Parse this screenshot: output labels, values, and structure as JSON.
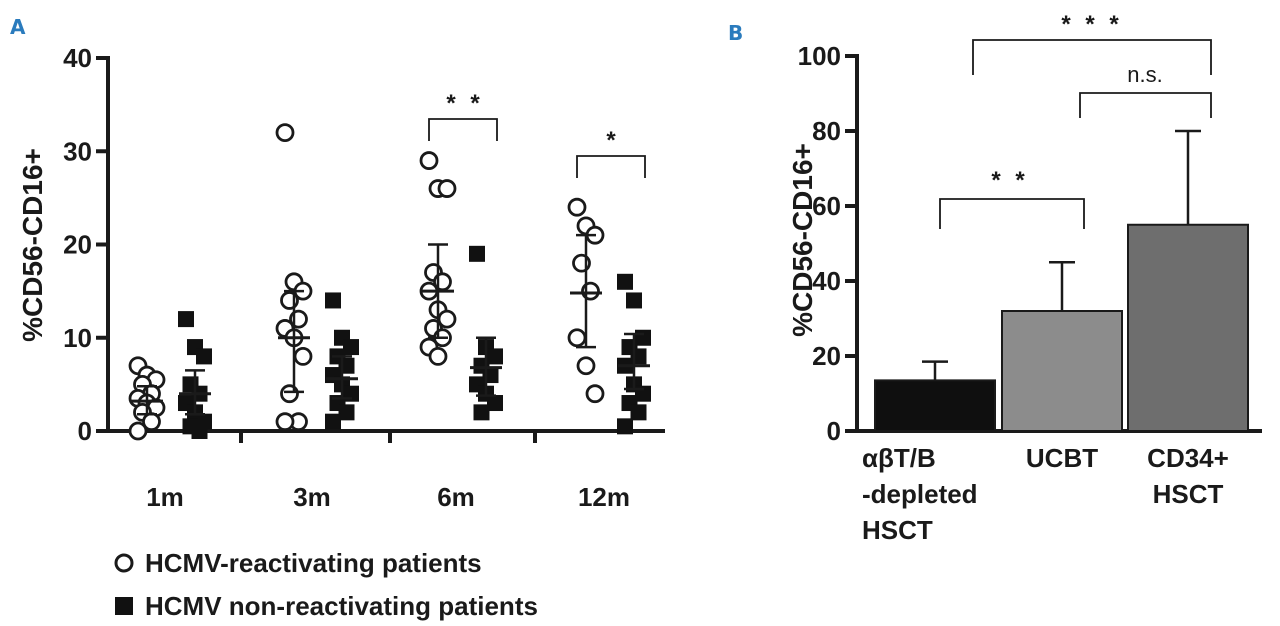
{
  "chart_data": [
    {
      "panel": "A",
      "type": "scatter",
      "ylabel": "%CD56-CD16+",
      "ylim": [
        0,
        40
      ],
      "yticks": [
        0,
        10,
        20,
        30,
        40
      ],
      "categories": [
        "1m",
        "3m",
        "6m",
        "12m"
      ],
      "series": [
        {
          "name": "HCMV-reactivating patients",
          "marker": "open-circle",
          "groups": [
            {
              "values": [
                7,
                6,
                5.5,
                5,
                4,
                3.5,
                3,
                2.5,
                2,
                1,
                0
              ],
              "mean": 3.2,
              "error": [
                1.8,
                4.8
              ]
            },
            {
              "values": [
                32,
                16,
                15,
                14,
                12,
                11,
                10,
                8,
                4,
                1,
                1
              ],
              "mean": 10,
              "error": [
                4.2,
                15
              ]
            },
            {
              "values": [
                29,
                26,
                26,
                17,
                16,
                15,
                13,
                12,
                11,
                10,
                9,
                8
              ],
              "mean": 15,
              "error": [
                10,
                20
              ]
            },
            {
              "values": [
                24,
                22,
                21,
                18,
                15,
                10,
                7,
                4
              ],
              "mean": 14.8,
              "error": [
                9,
                21
              ]
            }
          ]
        },
        {
          "name": "HCMV  non-reactivating patients",
          "marker": "filled-square",
          "groups": [
            {
              "values": [
                12,
                9,
                8,
                5,
                4,
                3,
                2,
                1,
                0.5,
                0
              ],
              "mean": 4,
              "error": [
                1.8,
                6.5
              ]
            },
            {
              "values": [
                14,
                10,
                9,
                8,
                7,
                6,
                5,
                4,
                3,
                2,
                1
              ],
              "mean": 5.6,
              "error": [
                3.5,
                8
              ]
            },
            {
              "values": [
                19,
                9,
                8,
                7,
                6,
                5,
                4,
                3,
                2
              ],
              "mean": 6.8,
              "error": [
                3.8,
                10
              ]
            },
            {
              "values": [
                16,
                14,
                10,
                9,
                8,
                7,
                5,
                4,
                3,
                2,
                0.5
              ],
              "mean": 7,
              "error": [
                4.5,
                10.4
              ]
            }
          ]
        }
      ],
      "annotations": [
        {
          "group": "6m",
          "label": "* *"
        },
        {
          "group": "12m",
          "label": "*"
        }
      ]
    },
    {
      "panel": "B",
      "type": "bar",
      "ylabel": "%CD56-CD16+",
      "ylim": [
        0,
        100
      ],
      "yticks": [
        0,
        20,
        40,
        60,
        80,
        100
      ],
      "categories": [
        [
          "αβT/B",
          "-depleted",
          "HSCT"
        ],
        [
          "UCBT"
        ],
        [
          "CD34+",
          "HSCT"
        ]
      ],
      "values": [
        13.5,
        32,
        55
      ],
      "errors": [
        5,
        13,
        25
      ],
      "colors": [
        "#0f0f0f",
        "#8c8c8c",
        "#6e6e6e"
      ],
      "annotations": [
        {
          "from": 0,
          "to": 1,
          "label": "* *"
        },
        {
          "from": 1,
          "to": 2,
          "label": "n.s."
        },
        {
          "from": 0,
          "to": 2,
          "label": "* * *"
        }
      ]
    }
  ],
  "panels": {
    "a_label": "A",
    "b_label": "B"
  },
  "legend": {
    "reactivating": "HCMV-reactivating patients",
    "non_reactivating": "HCMV  non-reactivating patients"
  },
  "colors": {
    "panel_letter": "#2a7bbd",
    "ink": "#1a1a1a"
  }
}
